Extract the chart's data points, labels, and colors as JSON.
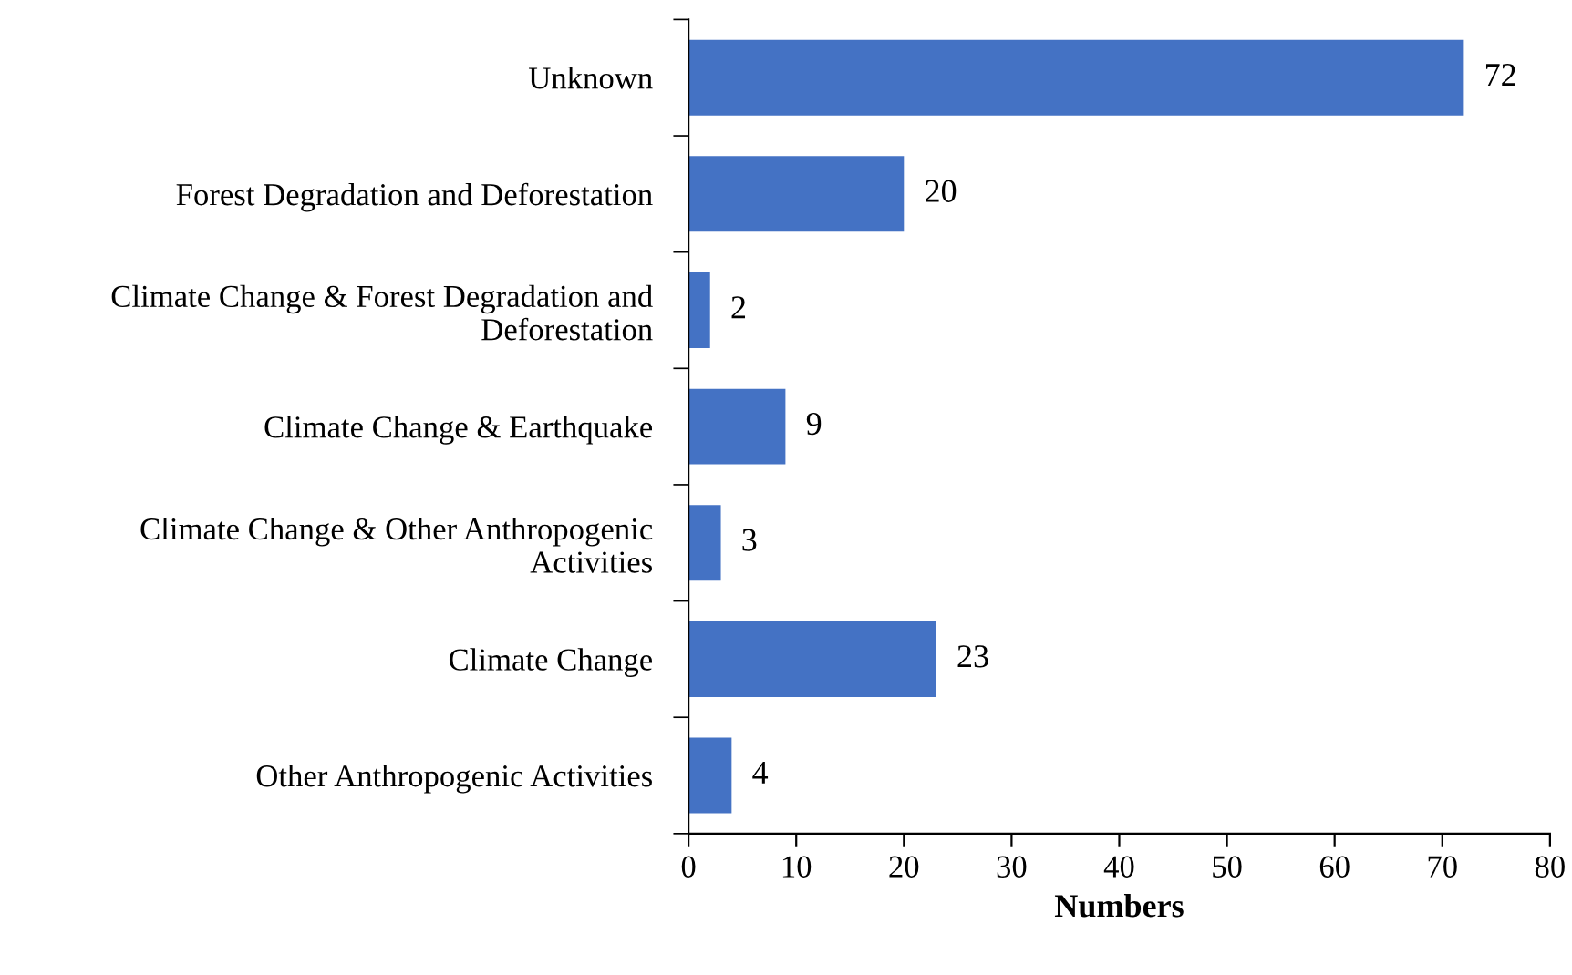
{
  "chart_data": {
    "type": "bar",
    "orientation": "horizontal",
    "xlabel": "Numbers",
    "categories": [
      "Unknown",
      "Forest Degradation and Deforestation",
      "Climate Change & Forest Degradation and Deforestation",
      "Climate Change & Earthquake",
      "Climate Change & Other Anthropogenic Activities",
      "Climate Change",
      "Other Anthropogenic Activities"
    ],
    "values": [
      72,
      20,
      2,
      9,
      3,
      23,
      4
    ],
    "color": "#4472c4",
    "xlim": [
      0,
      80
    ],
    "xticks": [
      0,
      10,
      20,
      30,
      40,
      50,
      60,
      70,
      80
    ],
    "data_labels": true,
    "grid": false
  }
}
